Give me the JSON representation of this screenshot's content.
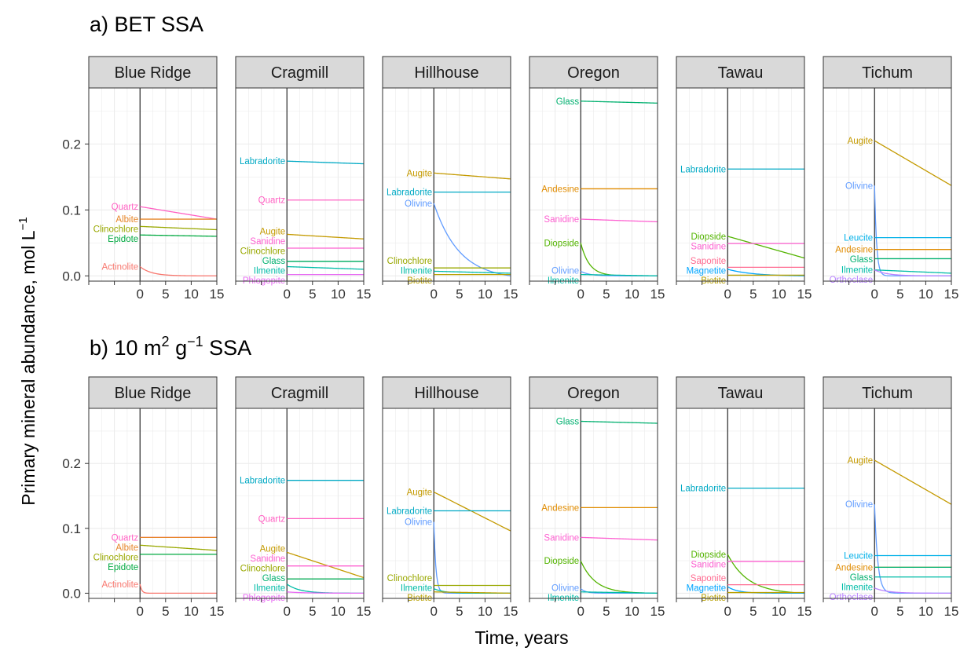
{
  "chart_data": {
    "type": "line",
    "ylabel": "Primary mineral abundance, mol  L",
    "ylabel_sup": "−1",
    "xlabel": "Time, years",
    "x_ticks": [
      "0",
      "5",
      "10",
      "15"
    ],
    "y_ticks": [
      "0.0",
      "0.1",
      "0.2"
    ],
    "xlim": [
      -10,
      15
    ],
    "ylim": [
      -0.008,
      0.285
    ],
    "grid": true,
    "colors": {
      "Actinolite": "#F8766D",
      "Albite": "#E6862A",
      "Andesine": "#E08B00",
      "Augite": "#C49A00",
      "Biotite": "#B8A000",
      "Clinochlore": "#99A800",
      "Diopside": "#53B400",
      "Epidote": "#00A940",
      "Glass": "#00B06F",
      "Ilmenite": "#00BCA7",
      "Labradorite": "#00A9C4",
      "Leucite": "#00B0E8",
      "Magnetite": "#00A5FF",
      "Olivine": "#619CFF",
      "Orthoclase": "#B983FF",
      "Phlogopite": "#E76BF3",
      "Quartz": "#FF61C3",
      "Sanidine": "#FD61D1",
      "Saponite": "#FF6C91"
    },
    "panels": [
      {
        "title_parts": [
          "a) BET SSA"
        ],
        "facets": [
          {
            "name": "Blue Ridge",
            "series": [
              {
                "name": "Quartz",
                "y0": 0.105,
                "y1": 0.086,
                "k": 0
              },
              {
                "name": "Albite",
                "y0": 0.086,
                "y1": 0.086,
                "k": 0.01
              },
              {
                "name": "Clinochlore",
                "y0": 0.075,
                "y1": 0.07,
                "k": 0
              },
              {
                "name": "Epidote",
                "y0": 0.062,
                "y1": 0.06,
                "k": 0
              },
              {
                "name": "Actinolite",
                "y0": 0.014,
                "y1": 0.0,
                "k": 0.45
              }
            ]
          },
          {
            "name": "Cragmill",
            "series": [
              {
                "name": "Labradorite",
                "y0": 0.174,
                "y1": 0.17,
                "k": 0
              },
              {
                "name": "Quartz",
                "y0": 0.115,
                "y1": 0.115,
                "k": 0
              },
              {
                "name": "Augite",
                "y0": 0.063,
                "y1": 0.056,
                "k": 0
              },
              {
                "name": "Sanidine",
                "y0": 0.042,
                "y1": 0.042,
                "k": 0
              },
              {
                "name": "Clinochlore",
                "y0": 0.022,
                "y1": 0.022,
                "k": 0
              },
              {
                "name": "Glass",
                "y0": 0.022,
                "y1": 0.022,
                "k": 0
              },
              {
                "name": "Ilmenite",
                "y0": 0.014,
                "y1": 0.01,
                "k": 0
              },
              {
                "name": "Phlogopite",
                "y0": 0.002,
                "y1": 0.002,
                "k": 0
              }
            ]
          },
          {
            "name": "Hillhouse",
            "series": [
              {
                "name": "Augite",
                "y0": 0.156,
                "y1": 0.147,
                "k": 0
              },
              {
                "name": "Labradorite",
                "y0": 0.127,
                "y1": 0.127,
                "k": 0
              },
              {
                "name": "Olivine",
                "y0": 0.11,
                "y1": 0.0,
                "k": 0.2
              },
              {
                "name": "Clinochlore",
                "y0": 0.012,
                "y1": 0.012,
                "k": 0
              },
              {
                "name": "Ilmenite",
                "y0": 0.007,
                "y1": 0.004,
                "k": 0
              },
              {
                "name": "Biotite",
                "y0": 0.002,
                "y1": 0.002,
                "k": 0
              }
            ]
          },
          {
            "name": "Oregon",
            "series": [
              {
                "name": "Glass",
                "y0": 0.265,
                "y1": 0.262,
                "k": 0
              },
              {
                "name": "Andesine",
                "y0": 0.132,
                "y1": 0.132,
                "k": 0
              },
              {
                "name": "Sanidine",
                "y0": 0.086,
                "y1": 0.082,
                "k": 0
              },
              {
                "name": "Diopside",
                "y0": 0.05,
                "y1": 0.0,
                "k": 0.6
              },
              {
                "name": "Olivine",
                "y0": 0.007,
                "y1": 0.0,
                "k": 0.6
              },
              {
                "name": "Ilmenite",
                "y0": 0.002,
                "y1": 0.0,
                "k": 0
              }
            ]
          },
          {
            "name": "Tawau",
            "series": [
              {
                "name": "Labradorite",
                "y0": 0.162,
                "y1": 0.162,
                "k": 0
              },
              {
                "name": "Diopside",
                "y0": 0.06,
                "y1": 0.027,
                "k": 0
              },
              {
                "name": "Sanidine",
                "y0": 0.049,
                "y1": 0.049,
                "k": 0
              },
              {
                "name": "Saponite",
                "y0": 0.013,
                "y1": 0.013,
                "k": 0
              },
              {
                "name": "Magnetite",
                "y0": 0.01,
                "y1": 0.0,
                "k": 0.2
              },
              {
                "name": "Biotite",
                "y0": 0.001,
                "y1": 0.001,
                "k": 0
              }
            ]
          },
          {
            "name": "Tichum",
            "series": [
              {
                "name": "Augite",
                "y0": 0.205,
                "y1": 0.137,
                "k": 0
              },
              {
                "name": "Olivine",
                "y0": 0.137,
                "y1": 0.0,
                "k": 2.5
              },
              {
                "name": "Leucite",
                "y0": 0.058,
                "y1": 0.058,
                "k": 0
              },
              {
                "name": "Andesine",
                "y0": 0.04,
                "y1": 0.04,
                "k": 0
              },
              {
                "name": "Glass",
                "y0": 0.026,
                "y1": 0.026,
                "k": 0
              },
              {
                "name": "Ilmenite",
                "y0": 0.009,
                "y1": 0.004,
                "k": 0
              },
              {
                "name": "Orthoclase",
                "y0": 0.009,
                "y1": 0.0,
                "k": 0.4
              }
            ]
          }
        ]
      },
      {
        "title_parts": [
          "b) 10 m",
          "2",
          " g",
          "−1",
          " SSA"
        ],
        "facets": [
          {
            "name": "Blue Ridge",
            "series": [
              {
                "name": "Quartz",
                "y0": 0.086,
                "y1": 0.086,
                "k": 0
              },
              {
                "name": "Albite",
                "y0": 0.086,
                "y1": 0.086,
                "k": 0.01
              },
              {
                "name": "Clinochlore",
                "y0": 0.074,
                "y1": 0.066,
                "k": 0
              },
              {
                "name": "Epidote",
                "y0": 0.06,
                "y1": 0.06,
                "k": 0
              },
              {
                "name": "Actinolite",
                "y0": 0.014,
                "y1": 0.0,
                "k": 3.0
              }
            ]
          },
          {
            "name": "Cragmill",
            "series": [
              {
                "name": "Labradorite",
                "y0": 0.174,
                "y1": 0.174,
                "k": 0
              },
              {
                "name": "Quartz",
                "y0": 0.115,
                "y1": 0.115,
                "k": 0
              },
              {
                "name": "Augite",
                "y0": 0.063,
                "y1": 0.024,
                "k": 0
              },
              {
                "name": "Sanidine",
                "y0": 0.042,
                "y1": 0.042,
                "k": 0
              },
              {
                "name": "Clinochlore",
                "y0": 0.022,
                "y1": 0.022,
                "k": 0
              },
              {
                "name": "Glass",
                "y0": 0.022,
                "y1": 0.022,
                "k": 0
              },
              {
                "name": "Ilmenite",
                "y0": 0.014,
                "y1": 0.0,
                "k": 0.4
              },
              {
                "name": "Phlogopite",
                "y0": 0.002,
                "y1": 0.0,
                "k": 0.3
              }
            ]
          },
          {
            "name": "Hillhouse",
            "series": [
              {
                "name": "Augite",
                "y0": 0.156,
                "y1": 0.096,
                "k": 0
              },
              {
                "name": "Labradorite",
                "y0": 0.127,
                "y1": 0.127,
                "k": 0
              },
              {
                "name": "Olivine",
                "y0": 0.11,
                "y1": 0.0,
                "k": 2.5
              },
              {
                "name": "Clinochlore",
                "y0": 0.012,
                "y1": 0.012,
                "k": 0
              },
              {
                "name": "Ilmenite",
                "y0": 0.007,
                "y1": 0.0,
                "k": 0.5
              },
              {
                "name": "Biotite",
                "y0": 0.002,
                "y1": 0.0,
                "k": 0
              }
            ]
          },
          {
            "name": "Oregon",
            "series": [
              {
                "name": "Glass",
                "y0": 0.265,
                "y1": 0.262,
                "k": 0
              },
              {
                "name": "Andesine",
                "y0": 0.132,
                "y1": 0.132,
                "k": 0
              },
              {
                "name": "Sanidine",
                "y0": 0.086,
                "y1": 0.082,
                "k": 0
              },
              {
                "name": "Diopside",
                "y0": 0.05,
                "y1": 0.0,
                "k": 0.35
              },
              {
                "name": "Olivine",
                "y0": 0.007,
                "y1": 0.0,
                "k": 1.0
              },
              {
                "name": "Ilmenite",
                "y0": 0.002,
                "y1": 0.0,
                "k": 0
              }
            ]
          },
          {
            "name": "Tawau",
            "series": [
              {
                "name": "Labradorite",
                "y0": 0.162,
                "y1": 0.162,
                "k": 0
              },
              {
                "name": "Diopside",
                "y0": 0.06,
                "y1": 0.0,
                "k": 0.25
              },
              {
                "name": "Sanidine",
                "y0": 0.049,
                "y1": 0.049,
                "k": 0
              },
              {
                "name": "Saponite",
                "y0": 0.013,
                "y1": 0.013,
                "k": 0
              },
              {
                "name": "Magnetite",
                "y0": 0.01,
                "y1": 0.0,
                "k": 0.5
              },
              {
                "name": "Biotite",
                "y0": 0.001,
                "y1": 0.001,
                "k": 0
              }
            ]
          },
          {
            "name": "Tichum",
            "series": [
              {
                "name": "Augite",
                "y0": 0.205,
                "y1": 0.137,
                "k": 0
              },
              {
                "name": "Olivine",
                "y0": 0.137,
                "y1": 0.0,
                "k": 1.6
              },
              {
                "name": "Leucite",
                "y0": 0.058,
                "y1": 0.058,
                "k": 0
              },
              {
                "name": "Andesine",
                "y0": 0.04,
                "y1": 0.04,
                "k": 0
              },
              {
                "name": "Glass",
                "y0": 0.04,
                "y1": 0.04,
                "k": 0
              },
              {
                "name": "Ilmenite",
                "y0": 0.025,
                "y1": 0.025,
                "k": 0
              },
              {
                "name": "Orthoclase",
                "y0": 0.008,
                "y1": 0.0,
                "k": 0.4
              }
            ]
          }
        ]
      }
    ]
  }
}
